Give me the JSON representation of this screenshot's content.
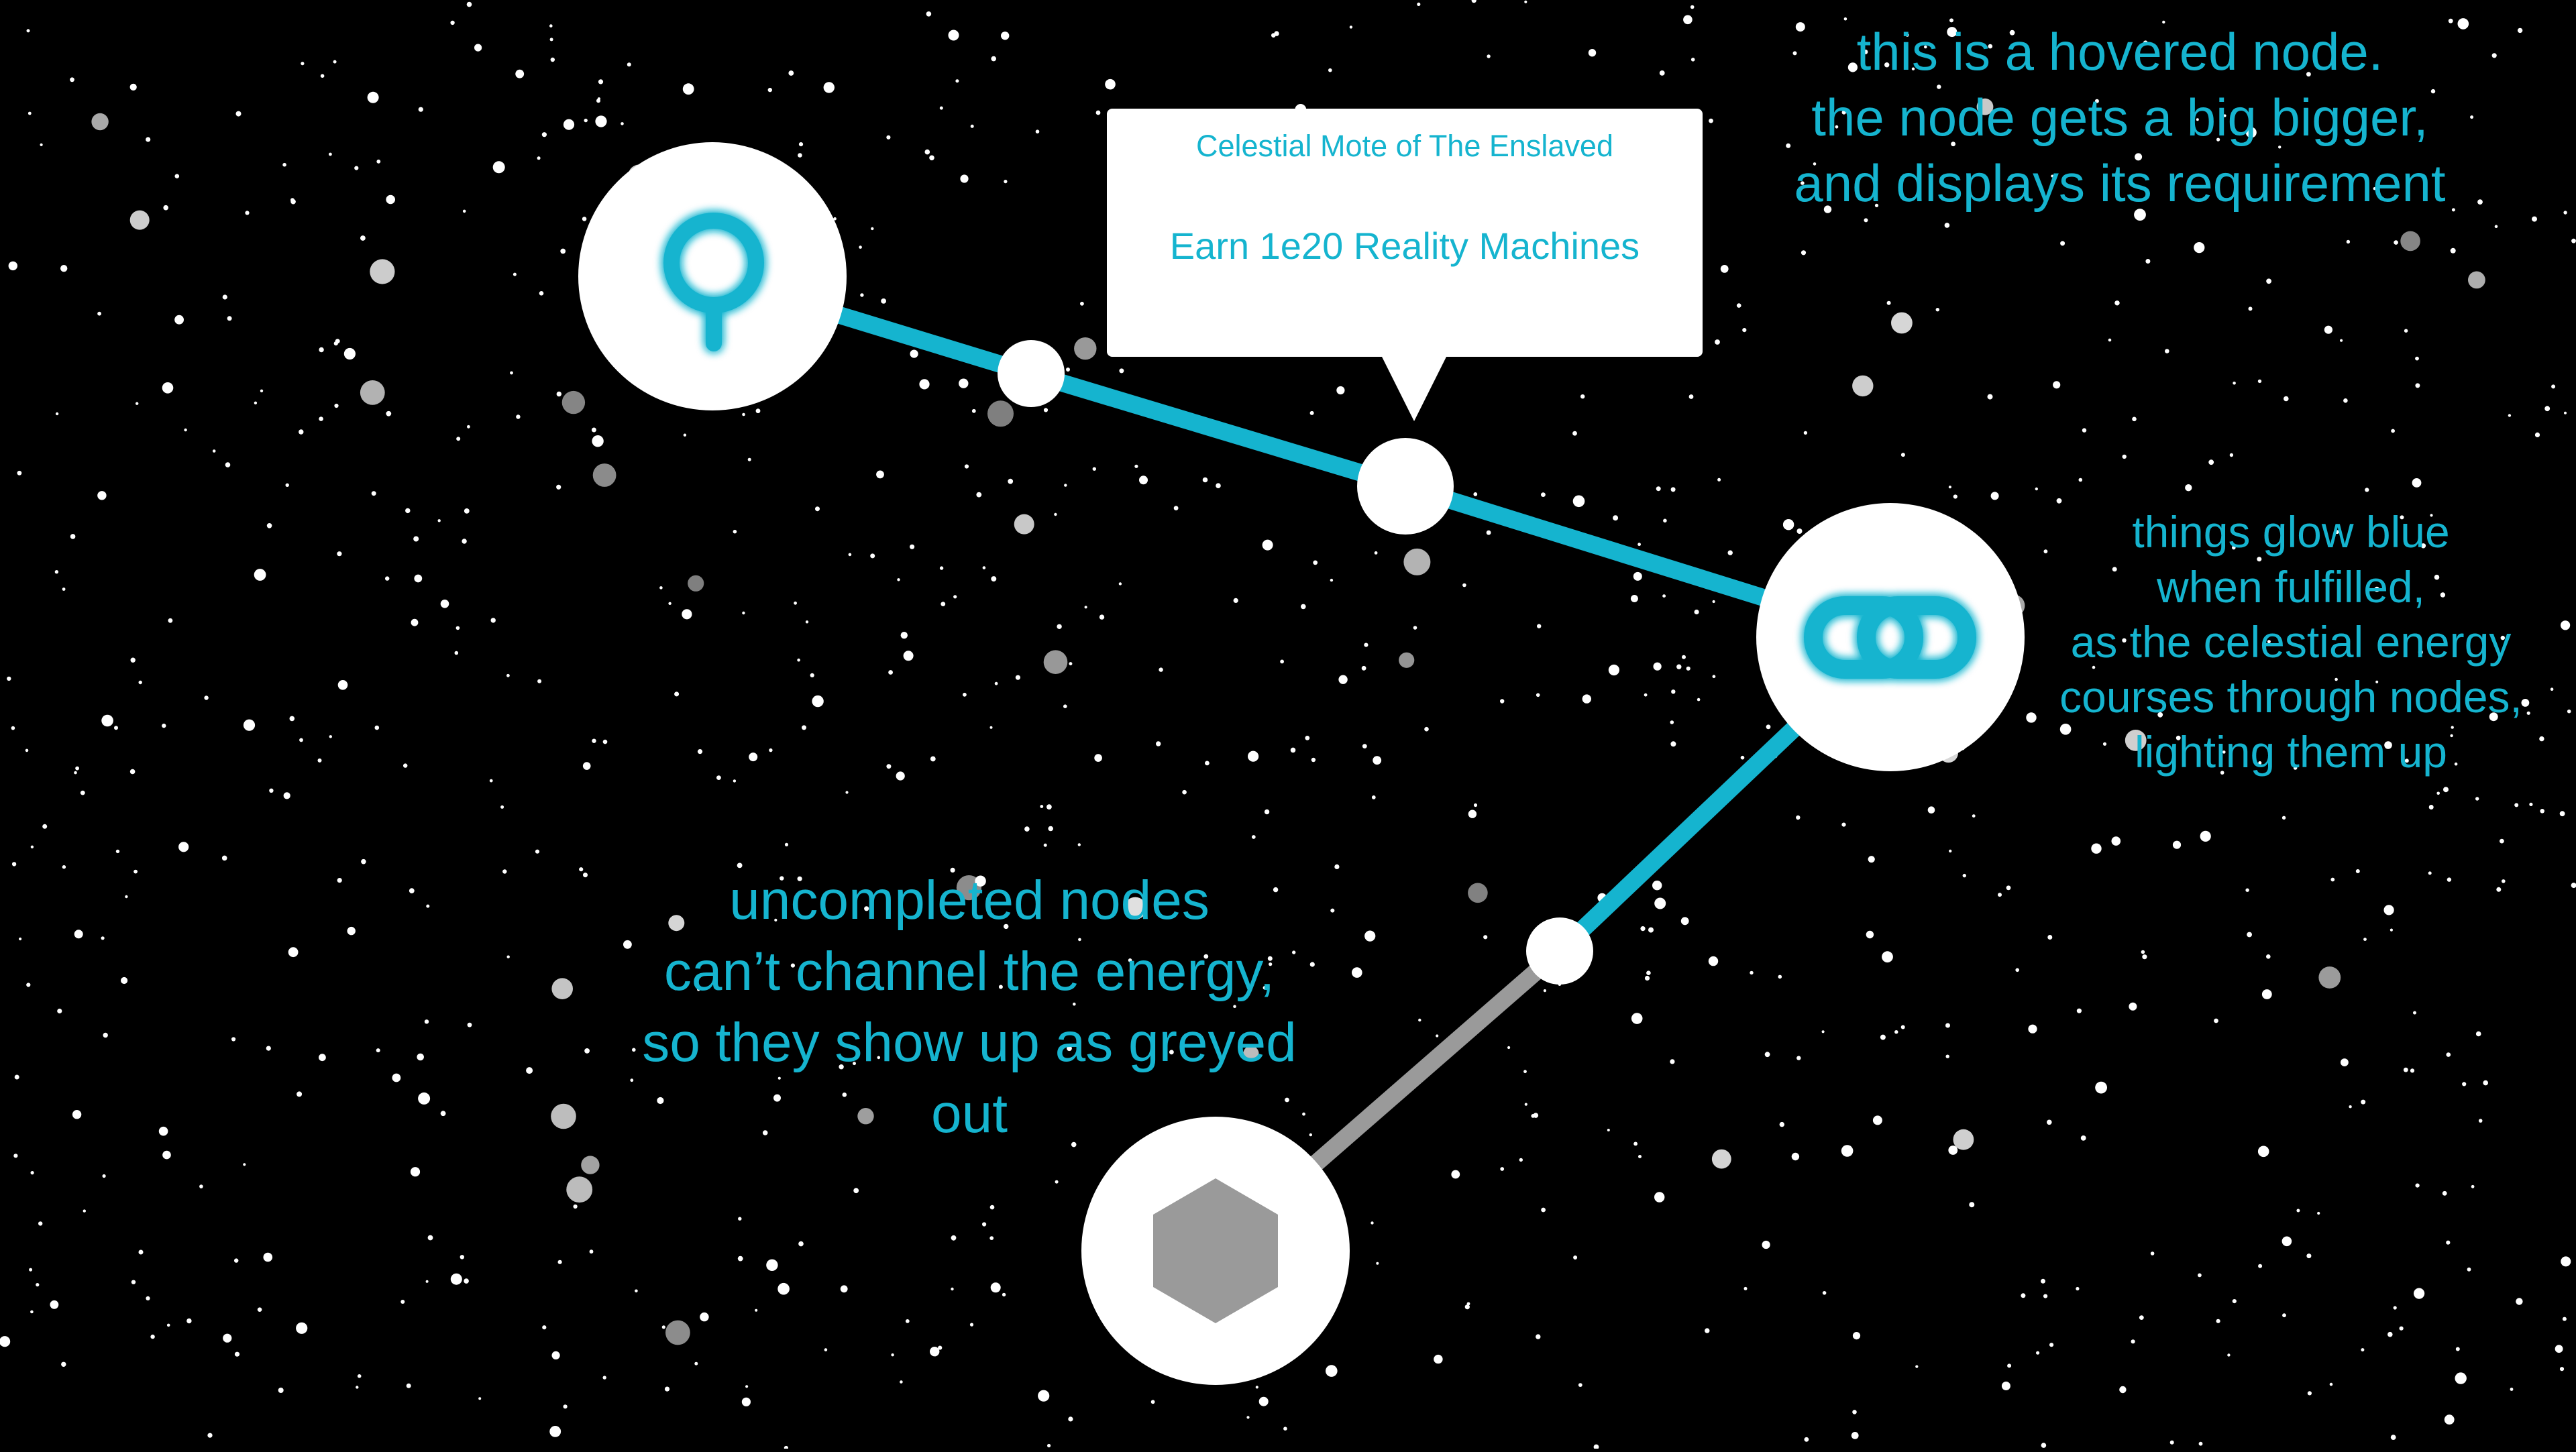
{
  "annotations": {
    "hovered_lines": [
      "this is a hovered node.",
      "the node gets a big bigger,",
      "and displays its requirement"
    ],
    "glow_lines": [
      "things glow blue",
      "when fulfilled,",
      "as the celestial energy",
      "courses through nodes,",
      "lighting them up"
    ],
    "uncompleted_lines": [
      "uncompleted nodes",
      "can’t channel the energy,",
      "so they show up as greyed",
      "out"
    ]
  },
  "tooltip": {
    "title": "Celestial Mote of The Enslaved",
    "requirement": "Earn 1e20 Reality Machines"
  },
  "nodes": [
    {
      "id": "node-top-left",
      "icon": "key-ring-icon",
      "state": "fulfilled"
    },
    {
      "id": "node-hovered",
      "icon": "none",
      "state": "hovered"
    },
    {
      "id": "node-chain",
      "icon": "chain-link-icon",
      "state": "fulfilled"
    },
    {
      "id": "node-bottom",
      "icon": "hexagon-icon",
      "state": "uncompleted"
    }
  ],
  "colors": {
    "background": "#000000",
    "active": "#15b4cf",
    "inactive": "#9a9a9a",
    "node": "#ffffff"
  }
}
